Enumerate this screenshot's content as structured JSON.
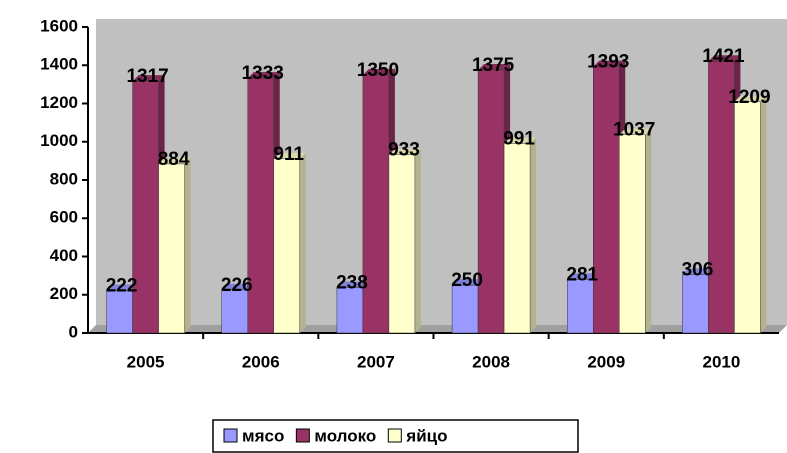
{
  "chart_data": {
    "type": "bar",
    "categories": [
      "2005",
      "2006",
      "2007",
      "2008",
      "2009",
      "2010"
    ],
    "series": [
      {
        "name": "мясо",
        "color": "#9999ff",
        "values": [
          222,
          226,
          238,
          250,
          281,
          306
        ]
      },
      {
        "name": "молоко",
        "color": "#993366",
        "values": [
          1317,
          1333,
          1350,
          1375,
          1393,
          1421
        ]
      },
      {
        "name": "яйцо",
        "color": "#ffffcc",
        "values": [
          884,
          911,
          933,
          991,
          1037,
          1209
        ]
      }
    ],
    "ylim": [
      0,
      1600
    ],
    "yticks": [
      0,
      200,
      400,
      600,
      800,
      1000,
      1200,
      1400,
      1600
    ],
    "grid": false,
    "legend": "bottom"
  }
}
